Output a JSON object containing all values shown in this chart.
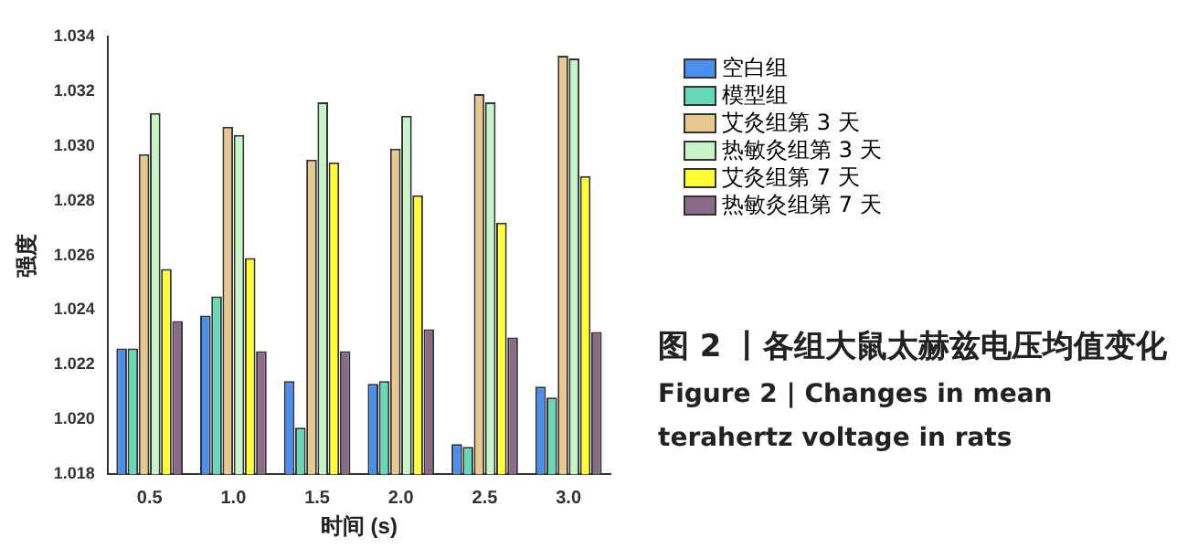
{
  "chart_data": {
    "type": "bar",
    "xlabel": "时间 (s)",
    "ylabel": "强度",
    "categories": [
      "0.5",
      "1.0",
      "1.5",
      "2.0",
      "2.5",
      "3.0"
    ],
    "series": [
      {
        "name": "空白组",
        "color": "#4a8ef0",
        "values": [
          1.0226,
          1.0238,
          1.0214,
          1.0213,
          1.0191,
          1.0212
        ]
      },
      {
        "name": "模型组",
        "color": "#66d8b8",
        "values": [
          1.0226,
          1.0245,
          1.0197,
          1.0214,
          1.019,
          1.0208
        ]
      },
      {
        "name": "艾灸组第 3 天",
        "color": "#e8c88e",
        "values": [
          1.0297,
          1.0307,
          1.0295,
          1.0299,
          1.0319,
          1.0333
        ]
      },
      {
        "name": "热敏灸组第 3 天",
        "color": "#c8f5c8",
        "values": [
          1.0312,
          1.0304,
          1.0316,
          1.0311,
          1.0316,
          1.0332
        ]
      },
      {
        "name": "艾灸组第 7 天",
        "color": "#ffff33",
        "values": [
          1.0255,
          1.0259,
          1.0294,
          1.0282,
          1.0272,
          1.0289
        ]
      },
      {
        "name": "热敏灸组第 7 天",
        "color": "#8a6a88",
        "values": [
          1.0236,
          1.0225,
          1.0225,
          1.0233,
          1.023,
          1.0232
        ]
      }
    ],
    "ylim": [
      1.018,
      1.034
    ],
    "yticks": [
      1.018,
      {
        "value": 1.02,
        "label": "1.020"
      },
      1.022,
      1.024,
      1.026,
      1.028,
      {
        "value": 1.03,
        "label": "1.030"
      },
      1.032,
      1.034
    ],
    "legend": "right",
    "annotations": [
      "图 2 丨各组大鼠太赫兹电压均值变化",
      "Figure 2  |  Changes in mean terahertz voltage in rats"
    ]
  }
}
